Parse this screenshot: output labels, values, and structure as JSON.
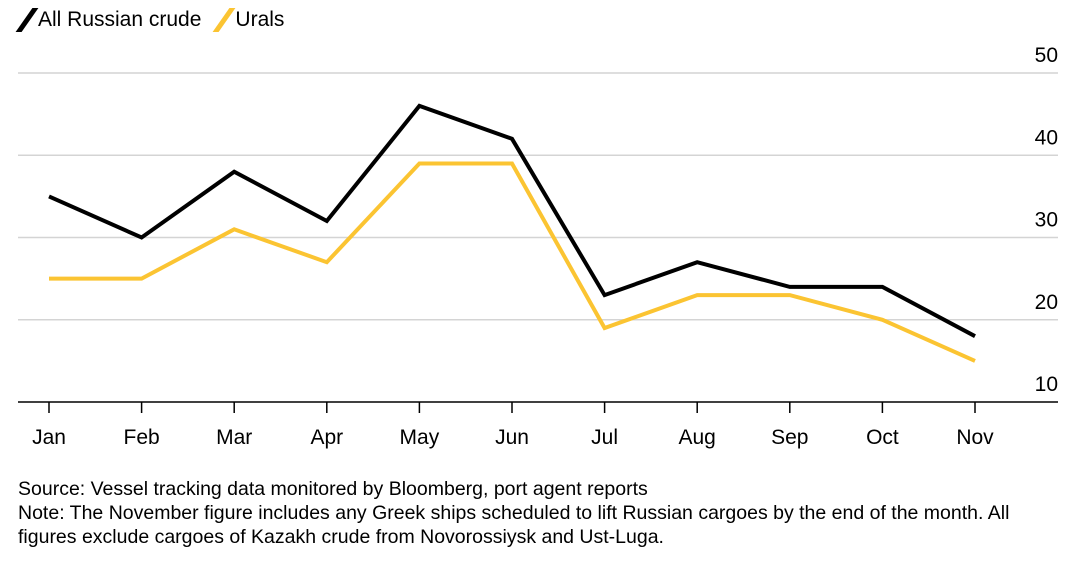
{
  "chart_data": {
    "type": "line",
    "categories": [
      "Jan",
      "Feb",
      "Mar",
      "Apr",
      "May",
      "Jun",
      "Jul",
      "Aug",
      "Sep",
      "Oct",
      "Nov"
    ],
    "series": [
      {
        "name": "All Russian crude",
        "color": "#000000",
        "values": [
          35,
          30,
          38,
          32,
          46,
          42,
          23,
          27,
          24,
          24,
          18
        ]
      },
      {
        "name": "Urals",
        "color": "#fbc432",
        "values": [
          25,
          25,
          31,
          27,
          39,
          39,
          19,
          23,
          23,
          20,
          15
        ]
      }
    ],
    "ylim": [
      10,
      50
    ],
    "yticks": [
      10,
      20,
      30,
      40,
      50
    ],
    "ytick_labels": [
      "10",
      "20",
      "30",
      "40",
      "50"
    ],
    "y_axis_side": "right",
    "grid": true,
    "legend_position": "top-left"
  },
  "legend": {
    "item1": "All Russian crude",
    "item2": "Urals"
  },
  "footer": {
    "source": "Source: Vessel tracking data monitored by Bloomberg, port agent reports",
    "note": "Note: The November figure includes any Greek ships scheduled to lift Russian cargoes by the end of the month. All figures exclude cargoes of Kazakh crude from Novorossiysk and Ust-Luga."
  }
}
